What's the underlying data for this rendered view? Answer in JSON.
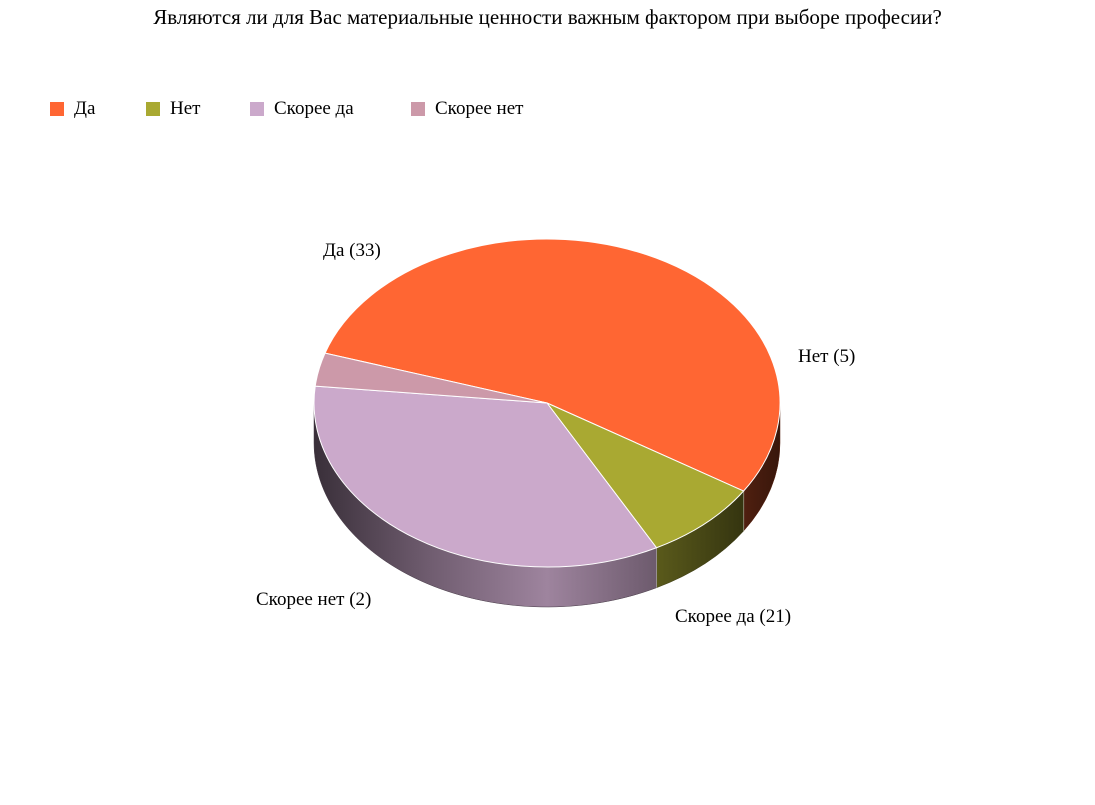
{
  "chart_data": {
    "type": "pie",
    "title": "Являются ли для Вас материальные ценности важным фактором при выборе професии?",
    "legend_position": "top-left",
    "three_d": true,
    "slices": [
      {
        "name": "Да",
        "value": 33,
        "label": "Да (33)",
        "color": "#ff6633"
      },
      {
        "name": "Нет",
        "value": 5,
        "label": "Нет (5)",
        "color": "#a9a932"
      },
      {
        "name": "Скорее да",
        "value": 21,
        "label": "Скорее да (21)",
        "color": "#cba9cb"
      },
      {
        "name": "Скорее нет",
        "value": 2,
        "label": "Скорее нет (2)",
        "color": "#cc99a9"
      }
    ]
  }
}
